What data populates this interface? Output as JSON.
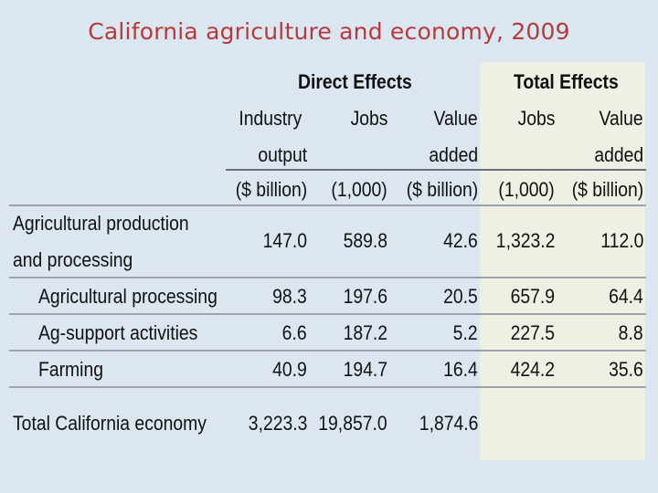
{
  "title": "California agriculture and economy, 2009",
  "headers": {
    "direct_effects": "Direct Effects",
    "total_effects": "Total Effects",
    "industry_output_1": "Industry",
    "industry_output_2": "output",
    "jobs": "Jobs",
    "value_1": "Value",
    "value_2": "added",
    "total_jobs": "Jobs",
    "total_value_1": "Value",
    "total_value_2": "added"
  },
  "units": {
    "industry_output": "($ billion)",
    "jobs": "(1,000)",
    "value_added": "($ billion)",
    "total_jobs": "(1,000)",
    "total_value_added": "($ billion)"
  },
  "rows": [
    {
      "label_1": "Agricultural production",
      "label_2": "and processing",
      "industry_output": "147.0",
      "jobs": "589.8",
      "value_added": "42.6",
      "total_jobs": "1,323.2",
      "total_value_added": "112.0"
    },
    {
      "label": "Agricultural processing",
      "industry_output": "98.3",
      "jobs": "197.6",
      "value_added": "20.5",
      "total_jobs": "657.9",
      "total_value_added": "64.4"
    },
    {
      "label": "Ag-support activities",
      "industry_output": "6.6",
      "jobs": "187.2",
      "value_added": "5.2",
      "total_jobs": "227.5",
      "total_value_added": "8.8"
    },
    {
      "label": "Farming",
      "industry_output": "40.9",
      "jobs": "194.7",
      "value_added": "16.4",
      "total_jobs": "424.2",
      "total_value_added": "35.6"
    },
    {
      "label": "Total California economy",
      "industry_output": "3,223.3",
      "jobs": "19,857.0",
      "value_added": "1,874.6"
    }
  ]
}
